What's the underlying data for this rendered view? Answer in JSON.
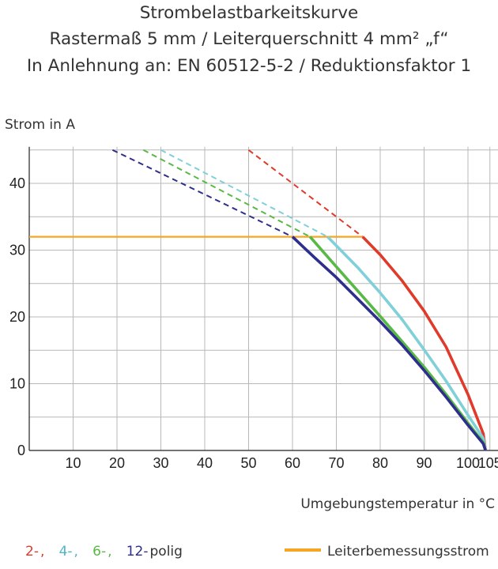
{
  "chart_data": {
    "type": "line",
    "title": [
      "Strombelastbarkeitskurve",
      "Rastermaß 5 mm / Leiterquerschnitt 4 mm² „f“",
      "In Anlehnung an: EN 60512-5-2 / Reduktionsfaktor 1"
    ],
    "ylabel": "Strom in A",
    "xlabel": "Umgebungstemperatur in °C",
    "xlim": [
      0,
      107
    ],
    "ylim": [
      0,
      45
    ],
    "xticks": [
      10,
      20,
      30,
      40,
      50,
      60,
      70,
      80,
      90,
      100,
      105
    ],
    "yticks": [
      0,
      10,
      20,
      30,
      40
    ],
    "grid": true,
    "rated_current": {
      "label": "Leiterbemessungsstrom",
      "value": 32,
      "x_end": 76,
      "color": "#f5a623"
    },
    "series": [
      {
        "name": "2-",
        "color": "#e03a2a",
        "dashed": [
          [
            50,
            45
          ],
          [
            76,
            32
          ]
        ],
        "solid": [
          [
            76,
            32
          ],
          [
            80,
            29.3
          ],
          [
            85,
            25.4
          ],
          [
            90,
            20.9
          ],
          [
            95,
            15.5
          ],
          [
            100,
            8.4
          ],
          [
            103.5,
            2.5
          ],
          [
            104,
            0
          ]
        ]
      },
      {
        "name": "4-",
        "color": "#7fd0d8",
        "dashed": [
          [
            30,
            45
          ],
          [
            68,
            32
          ]
        ],
        "solid": [
          [
            68,
            32
          ],
          [
            75,
            27.3
          ],
          [
            80,
            23.6
          ],
          [
            85,
            19.6
          ],
          [
            90,
            15.1
          ],
          [
            95,
            10.4
          ],
          [
            100,
            5.3
          ],
          [
            103.5,
            1.8
          ],
          [
            104,
            0
          ]
        ]
      },
      {
        "name": "6-",
        "color": "#58b947",
        "dashed": [
          [
            26,
            45
          ],
          [
            64,
            32
          ]
        ],
        "solid": [
          [
            64,
            32
          ],
          [
            70,
            27.5
          ],
          [
            75,
            23.8
          ],
          [
            80,
            20.1
          ],
          [
            85,
            16.3
          ],
          [
            90,
            12.5
          ],
          [
            95,
            8.4
          ],
          [
            100,
            4.1
          ],
          [
            103.5,
            1.2
          ],
          [
            104,
            0
          ]
        ]
      },
      {
        "name": "12-",
        "color": "#2e2e8c",
        "dashed": [
          [
            19,
            45
          ],
          [
            60,
            32
          ]
        ],
        "solid": [
          [
            60,
            32
          ],
          [
            65,
            28.9
          ],
          [
            70,
            25.9
          ],
          [
            75,
            22.6
          ],
          [
            80,
            19.3
          ],
          [
            85,
            15.8
          ],
          [
            90,
            12.0
          ],
          [
            95,
            8.0
          ],
          [
            100,
            3.8
          ],
          [
            103.5,
            1.0
          ],
          [
            104,
            0
          ]
        ]
      }
    ]
  },
  "legend": {
    "suffix": "polig"
  }
}
